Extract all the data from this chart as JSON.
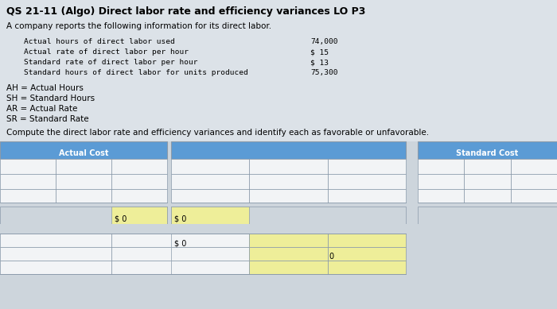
{
  "title": "QS 21-11 (Algo) Direct labor rate and efficiency variances LO P3",
  "subtitle": "A company reports the following information for its direct labor.",
  "info_labels": [
    "Actual hours of direct labor used",
    "Actual rate of direct labor per hour",
    "Standard rate of direct labor per hour",
    "Standard hours of direct labor for units produced"
  ],
  "info_values": [
    "74,000",
    "$ 15",
    "$ 13",
    "75,300"
  ],
  "abbrev_lines": [
    "AH = Actual Hours",
    "SH = Standard Hours",
    "AR = Actual Rate",
    "SR = Standard Rate"
  ],
  "compute_text": "Compute the direct labor rate and efficiency variances and identify each as favorable or unfavorable.",
  "header_blue": "#5b9bd5",
  "cell_bg_white": "#f2f4f6",
  "cell_bg_yellow": "#eeee99",
  "table_bg": "#cdd5dc",
  "gap_bg": "#d8dfe6",
  "actual_cost_label": "Actual Cost",
  "standard_cost_label": "Standard Cost",
  "bg_color": "#dce2e8",
  "border_color": "#8a9aaa",
  "text_color": "#000000"
}
